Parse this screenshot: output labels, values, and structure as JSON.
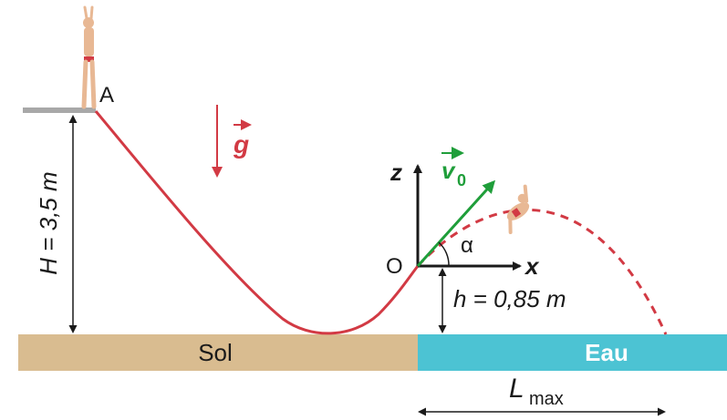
{
  "labels": {
    "point_a": "A",
    "point_o": "O",
    "gravity": "g",
    "axis_z": "z",
    "axis_x": "x",
    "velocity": "v",
    "velocity_sub": "0",
    "angle": "α",
    "height_big": "H = 3,5 m",
    "height_small": "h = 0,85 m",
    "ground": "Sol",
    "water": "Eau",
    "length": "L",
    "length_sub": "max"
  },
  "colors": {
    "slide": "#d23a44",
    "trajectory": "#d23a44",
    "gravity_arrow": "#d23a44",
    "velocity_arrow": "#1f9e3a",
    "ground": "#d9bc90",
    "water": "#4cc3d3",
    "platform": "#a8a8a8",
    "text": "#1a1a1a"
  }
}
